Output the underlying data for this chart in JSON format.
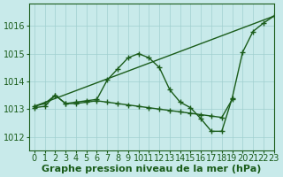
{
  "xlabel": "Graphe pression niveau de la mer (hPa)",
  "xlim": [
    -0.5,
    23
  ],
  "ylim": [
    1011.5,
    1016.8
  ],
  "yticks": [
    1012,
    1013,
    1014,
    1015,
    1016
  ],
  "xticks": [
    0,
    1,
    2,
    3,
    4,
    5,
    6,
    7,
    8,
    9,
    10,
    11,
    12,
    13,
    14,
    15,
    16,
    17,
    18,
    19,
    20,
    21,
    22,
    23
  ],
  "bg_color": "#c8eaea",
  "line_color": "#1a5c1a",
  "grid_color": "#a0cfcf",
  "series": [
    {
      "x": [
        0,
        1,
        2,
        3,
        4,
        5,
        6,
        7,
        8,
        9,
        10,
        11,
        12,
        13,
        14,
        15,
        16,
        17,
        18,
        19,
        20,
        21,
        22,
        23
      ],
      "y": [
        1013.1,
        1013.2,
        1013.5,
        1013.2,
        1013.25,
        1013.3,
        1013.35,
        1014.05,
        1014.45,
        1014.85,
        1015.0,
        1014.85,
        1014.5,
        1013.7,
        1013.25,
        1013.05,
        1012.65,
        1012.2,
        1012.2,
        1013.4,
        1015.05,
        1015.8,
        1016.1,
        1016.35
      ],
      "marker": true
    },
    {
      "x": [
        0,
        23
      ],
      "y": [
        1013.1,
        1016.35
      ],
      "marker": false
    },
    {
      "x": [
        0,
        1,
        2,
        3,
        4,
        5,
        6,
        7,
        8,
        9,
        10,
        11,
        12,
        13,
        14,
        15,
        16,
        17,
        18,
        19
      ],
      "y": [
        1013.05,
        1013.1,
        1013.5,
        1013.2,
        1013.2,
        1013.25,
        1013.3,
        1013.25,
        1013.2,
        1013.15,
        1013.1,
        1013.05,
        1013.0,
        1012.95,
        1012.9,
        1012.85,
        1012.8,
        1012.75,
        1012.7,
        1013.35
      ],
      "marker": true
    }
  ],
  "font_color": "#1a5c1a",
  "tick_fontsize": 7,
  "label_fontsize": 8
}
